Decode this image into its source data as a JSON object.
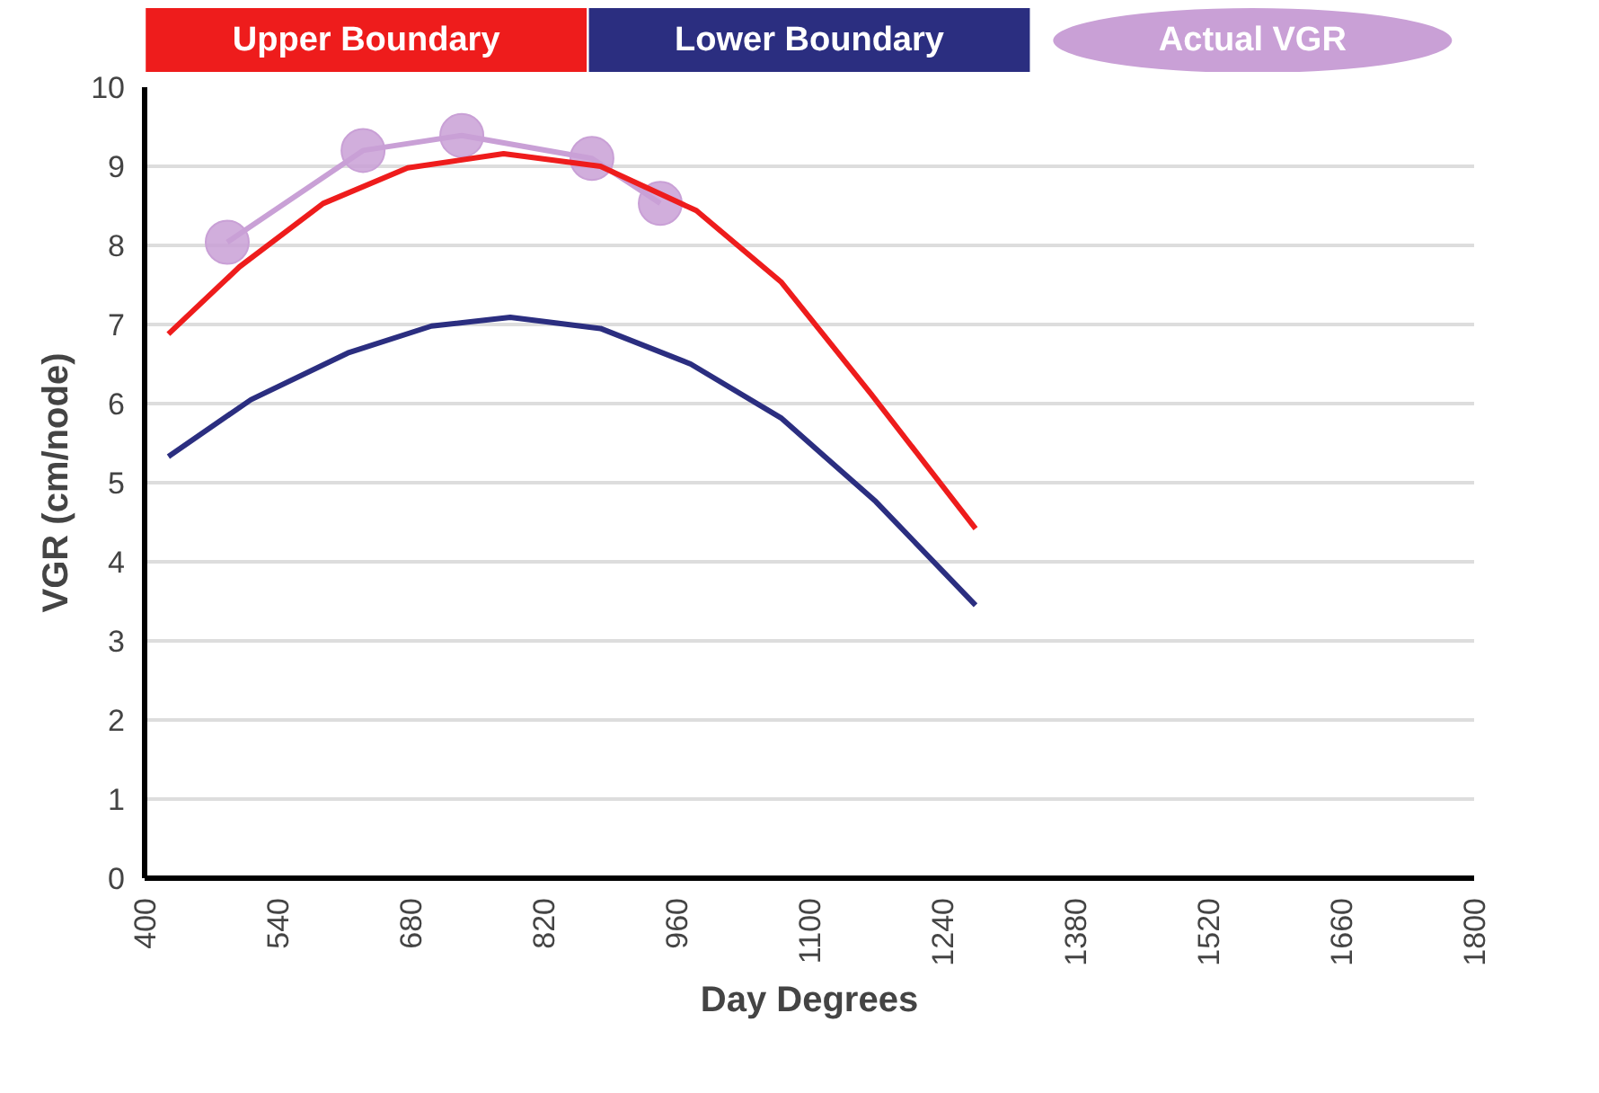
{
  "chart_data": {
    "type": "line",
    "xlabel": "Day Degrees",
    "ylabel": "VGR (cm/node)",
    "xlim": [
      400,
      1800
    ],
    "xticks": [
      400,
      540,
      680,
      820,
      960,
      1100,
      1240,
      1380,
      1520,
      1660,
      1800
    ],
    "ylim": [
      0,
      10
    ],
    "yticks": [
      0,
      1,
      2,
      3,
      4,
      5,
      6,
      7,
      8,
      9,
      10
    ],
    "grid": "y",
    "legend": "top",
    "series": [
      {
        "name": "Upper Boundary",
        "color": "#ee1c1c",
        "marker": "none",
        "x": [
          425,
          500,
          588,
          677,
          778,
          880,
          981,
          1070,
          1165,
          1275
        ],
        "values": [
          6.88,
          7.73,
          8.53,
          8.98,
          9.16,
          9.0,
          8.44,
          7.54,
          6.12,
          4.42
        ]
      },
      {
        "name": "Lower Boundary",
        "color": "#2b2e80",
        "marker": "none",
        "x": [
          425,
          512,
          614,
          702,
          785,
          880,
          975,
          1070,
          1170,
          1275
        ],
        "values": [
          5.33,
          6.05,
          6.64,
          6.98,
          7.09,
          6.95,
          6.5,
          5.82,
          4.76,
          3.45
        ]
      },
      {
        "name": "Actual VGR",
        "color": "#c9a0d6",
        "marker": "circle",
        "x": [
          487,
          630,
          734,
          871,
          943
        ],
        "values": [
          8.04,
          9.2,
          9.39,
          9.1,
          8.53
        ]
      }
    ]
  }
}
